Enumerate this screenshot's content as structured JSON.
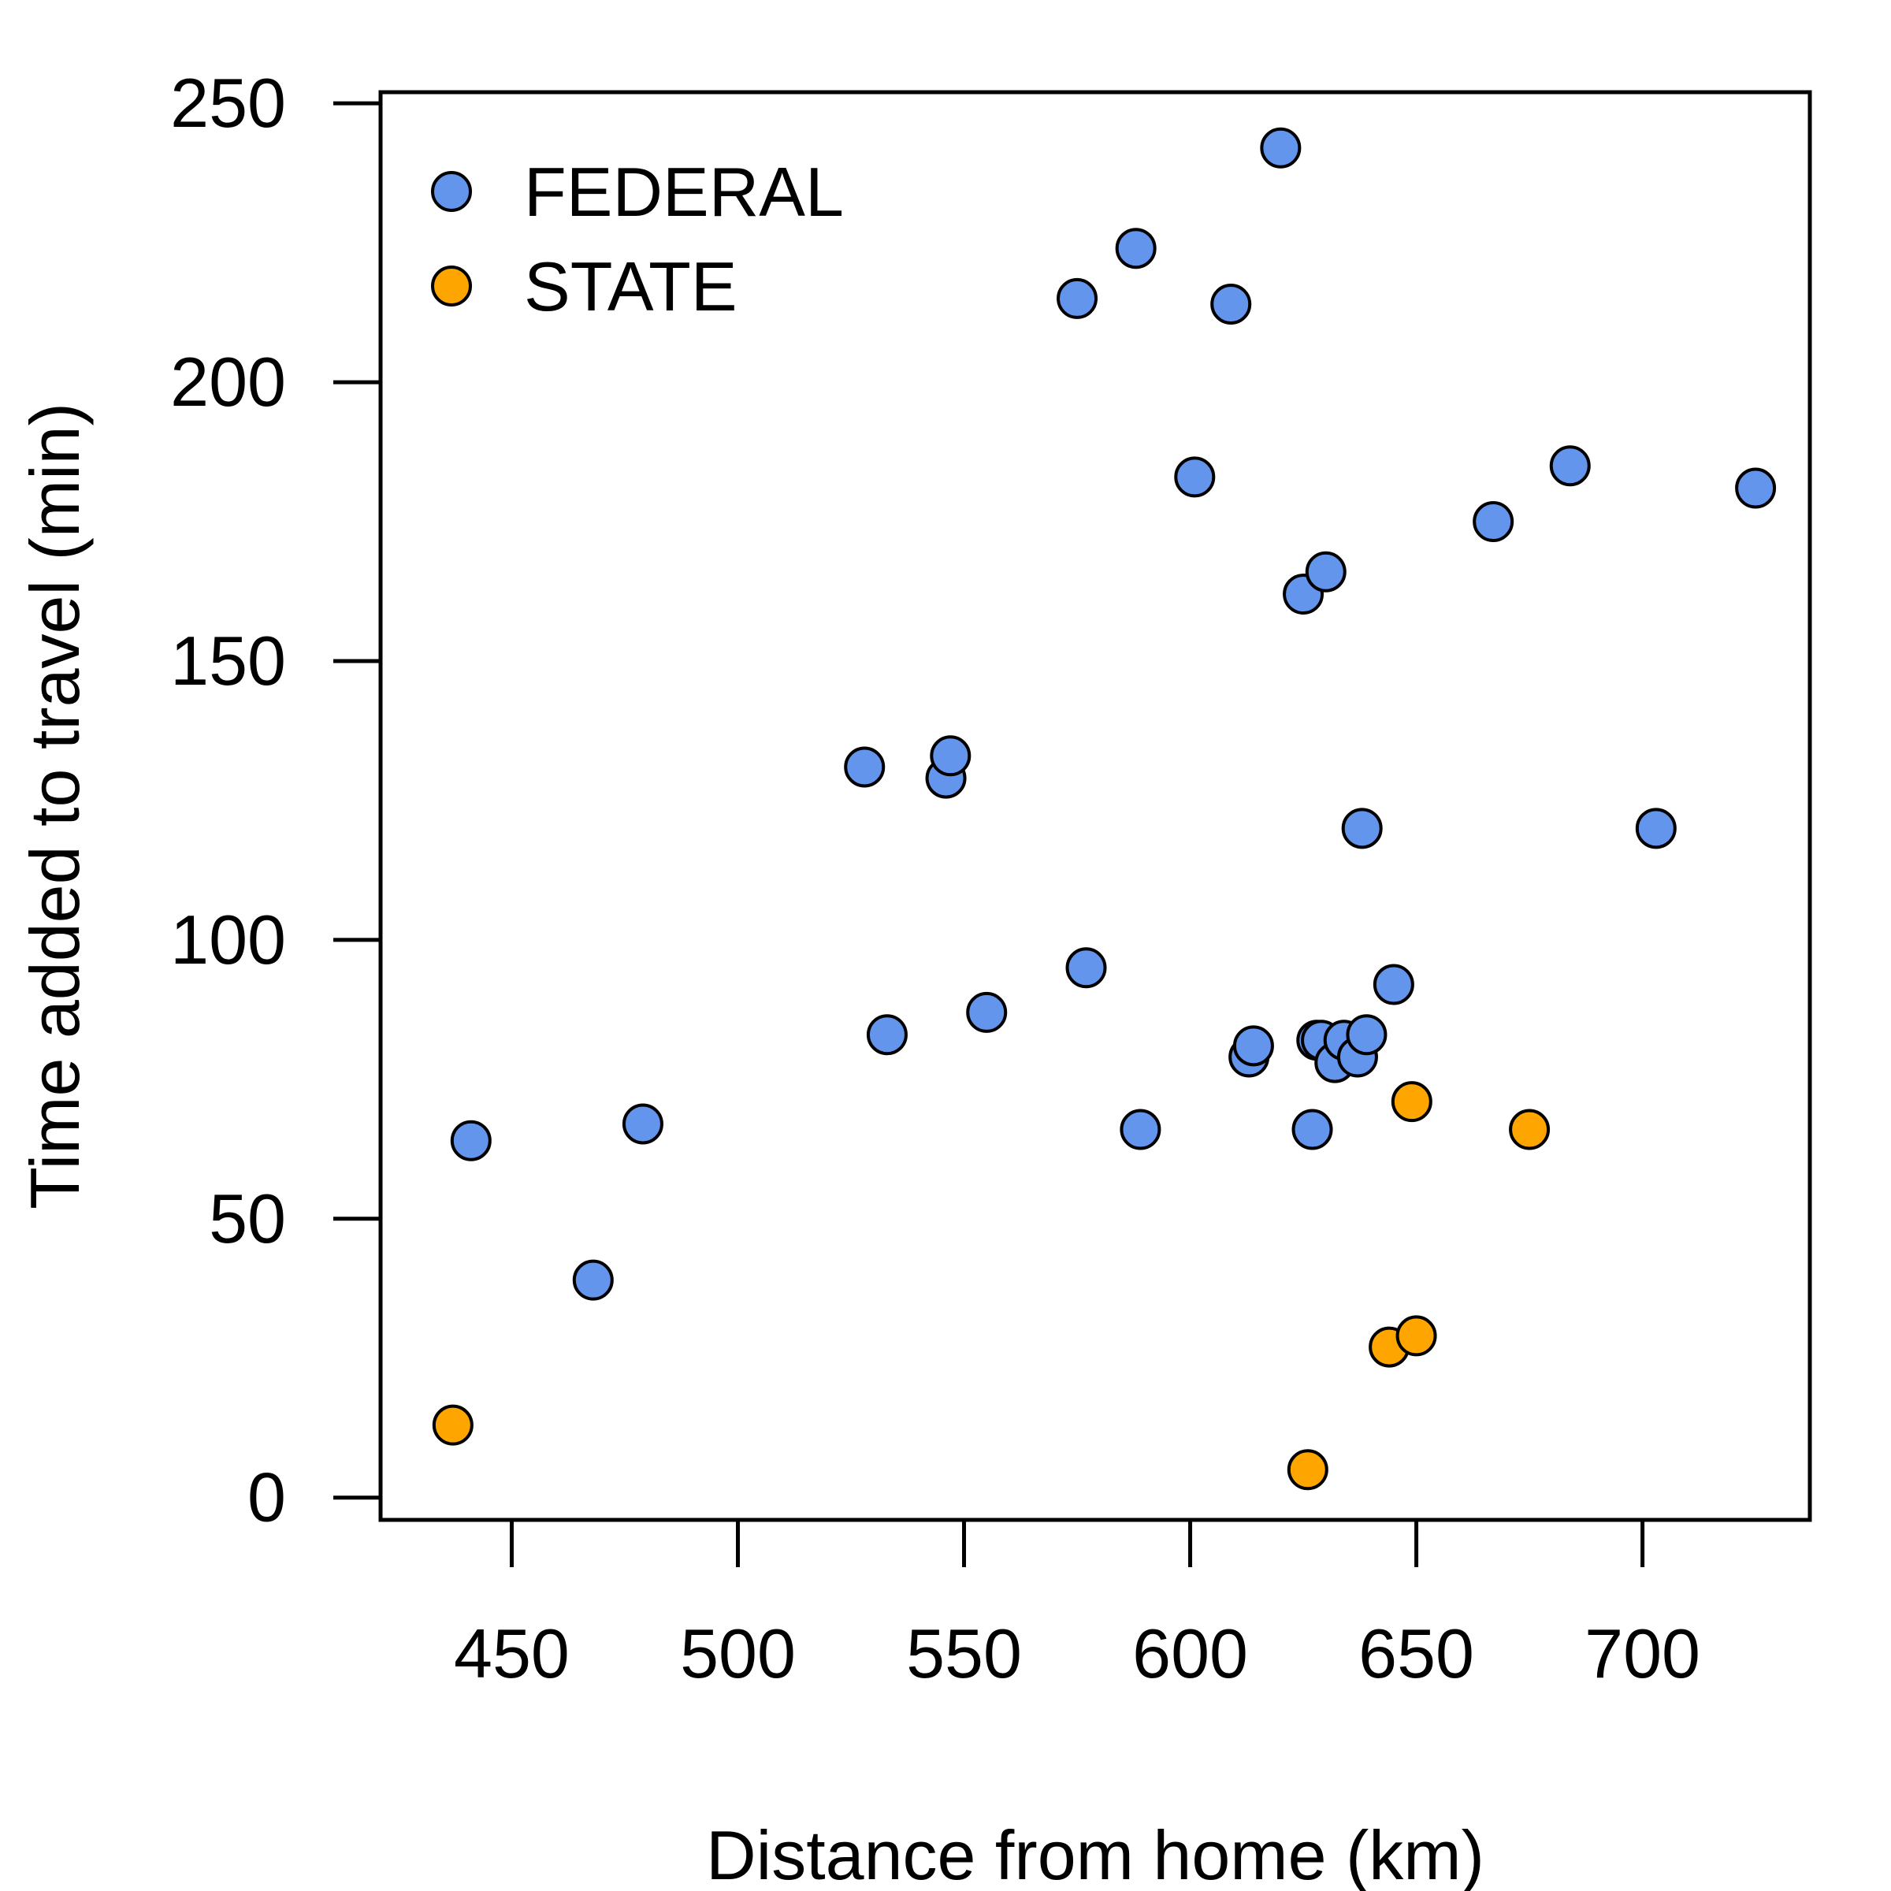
{
  "chart_data": {
    "type": "scatter",
    "title": "",
    "xlabel": "Distance from home (km)",
    "ylabel": "Time added to travel (min)",
    "xlim": [
      421,
      737
    ],
    "ylim": [
      -4,
      252
    ],
    "xticks": [
      450,
      500,
      550,
      600,
      650,
      700
    ],
    "yticks": [
      0,
      50,
      100,
      150,
      200,
      250
    ],
    "grid": false,
    "legend": "top-left",
    "series": [
      {
        "name": "FEDERAL",
        "color": "#6495ED",
        "points": [
          [
            441,
            64
          ],
          [
            468,
            39
          ],
          [
            479,
            67
          ],
          [
            528,
            131
          ],
          [
            533,
            83
          ],
          [
            546,
            129
          ],
          [
            547,
            133
          ],
          [
            555,
            87
          ],
          [
            575,
            215
          ],
          [
            577,
            95
          ],
          [
            588,
            224
          ],
          [
            589,
            66
          ],
          [
            601,
            183
          ],
          [
            609,
            214
          ],
          [
            613,
            79
          ],
          [
            614,
            81
          ],
          [
            620,
            242
          ],
          [
            625,
            162
          ],
          [
            627,
            66
          ],
          [
            628,
            82
          ],
          [
            629,
            82
          ],
          [
            630,
            166
          ],
          [
            632,
            78
          ],
          [
            634,
            82
          ],
          [
            637,
            79
          ],
          [
            638,
            120
          ],
          [
            639,
            83
          ],
          [
            645,
            92
          ],
          [
            667,
            175
          ],
          [
            684,
            185
          ],
          [
            703,
            120
          ],
          [
            725,
            181
          ]
        ]
      },
      {
        "name": "STATE",
        "color": "#FFA500",
        "points": [
          [
            437,
            13
          ],
          [
            626,
            5
          ],
          [
            644,
            27
          ],
          [
            649,
            71
          ],
          [
            650,
            29
          ],
          [
            675,
            66
          ]
        ]
      }
    ]
  }
}
